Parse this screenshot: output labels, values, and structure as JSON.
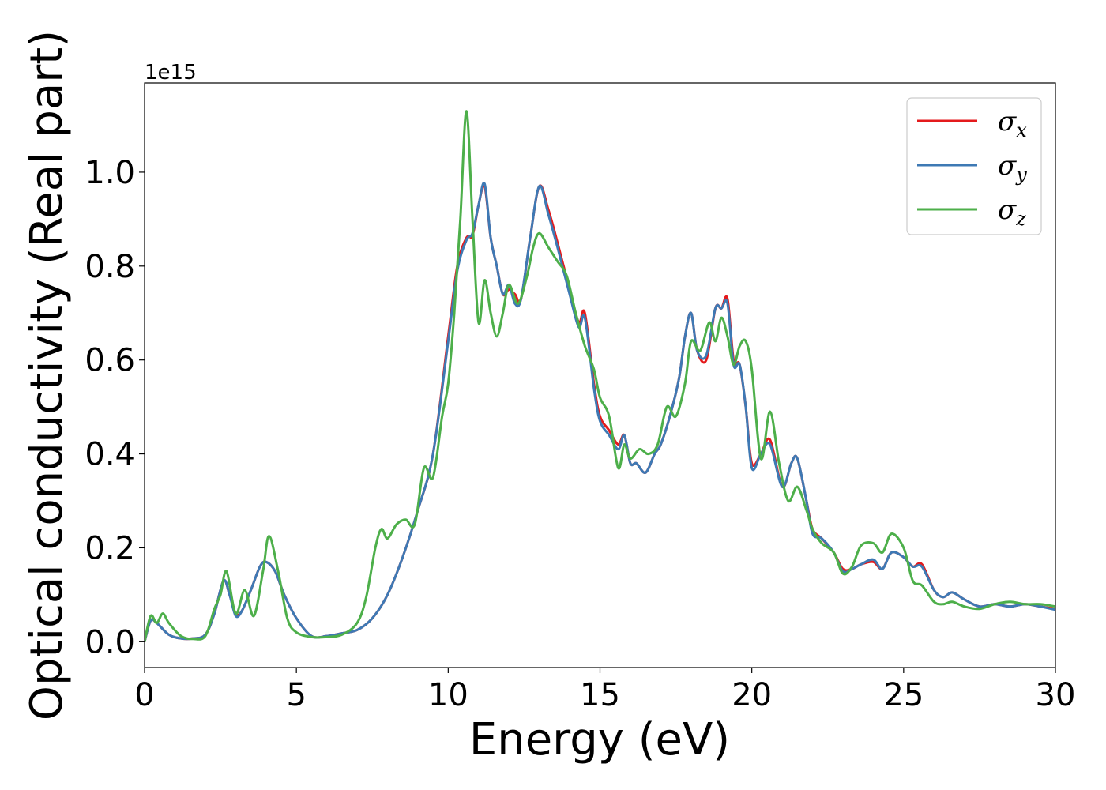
{
  "chart_data": {
    "type": "line",
    "xlabel": "Energy (eV)",
    "ylabel": "Optical conductivity (Real part)",
    "y_offset_label": "1e15",
    "xlim": [
      0,
      30
    ],
    "ylim": [
      -0.055,
      1.19
    ],
    "x_ticks": [
      0,
      5,
      10,
      15,
      20,
      25,
      30
    ],
    "x_tick_labels": [
      "0",
      "5",
      "10",
      "15",
      "20",
      "25",
      "30"
    ],
    "y_ticks": [
      0.0,
      0.2,
      0.4,
      0.6,
      0.8,
      1.0
    ],
    "y_tick_labels": [
      "0.0",
      "0.2",
      "0.4",
      "0.6",
      "0.8",
      "1.0"
    ],
    "grid": false,
    "legend_position": "top-right",
    "series": [
      {
        "name": "σ",
        "subscript": "x",
        "color": "#e41a1c",
        "x": [
          0,
          0.2,
          0.4,
          0.8,
          1.2,
          1.6,
          2.0,
          2.3,
          2.6,
          2.8,
          3.0,
          3.2,
          3.5,
          3.8,
          4.0,
          4.3,
          4.6,
          5.0,
          5.5,
          6.0,
          6.5,
          7.0,
          7.5,
          8.0,
          8.5,
          9.0,
          9.5,
          10.0,
          10.3,
          10.6,
          10.8,
          11.0,
          11.2,
          11.4,
          11.6,
          11.8,
          12.0,
          12.2,
          12.4,
          12.7,
          13.0,
          13.3,
          13.6,
          14.0,
          14.3,
          14.5,
          14.8,
          15.0,
          15.3,
          15.6,
          15.8,
          16.0,
          16.2,
          16.5,
          16.8,
          17.0,
          17.3,
          17.6,
          17.8,
          18.0,
          18.2,
          18.5,
          18.8,
          19.0,
          19.2,
          19.4,
          19.6,
          19.8,
          20.0,
          20.3,
          20.6,
          21.0,
          21.3,
          21.5,
          21.8,
          22.0,
          22.3,
          22.7,
          23.0,
          23.3,
          23.6,
          24.0,
          24.3,
          24.6,
          25.0,
          25.3,
          25.6,
          26.0,
          26.3,
          26.6,
          27.0,
          27.5,
          28.0,
          28.5,
          29.0,
          29.5,
          30.0
        ],
        "values": [
          0.0,
          0.045,
          0.04,
          0.015,
          0.007,
          0.007,
          0.015,
          0.06,
          0.13,
          0.1,
          0.06,
          0.065,
          0.11,
          0.16,
          0.17,
          0.15,
          0.1,
          0.05,
          0.012,
          0.012,
          0.018,
          0.025,
          0.05,
          0.1,
          0.18,
          0.28,
          0.4,
          0.65,
          0.8,
          0.86,
          0.865,
          0.93,
          0.97,
          0.86,
          0.8,
          0.74,
          0.75,
          0.74,
          0.73,
          0.86,
          0.97,
          0.92,
          0.85,
          0.75,
          0.68,
          0.7,
          0.55,
          0.48,
          0.45,
          0.42,
          0.44,
          0.38,
          0.38,
          0.36,
          0.4,
          0.42,
          0.48,
          0.56,
          0.65,
          0.7,
          0.62,
          0.6,
          0.71,
          0.71,
          0.73,
          0.6,
          0.59,
          0.5,
          0.38,
          0.4,
          0.43,
          0.33,
          0.38,
          0.39,
          0.3,
          0.24,
          0.22,
          0.19,
          0.155,
          0.155,
          0.165,
          0.17,
          0.155,
          0.19,
          0.18,
          0.16,
          0.165,
          0.11,
          0.095,
          0.105,
          0.09,
          0.075,
          0.08,
          0.075,
          0.08,
          0.075,
          0.07
        ]
      },
      {
        "name": "σ",
        "subscript": "y",
        "color": "#3e79b4",
        "x": [
          0,
          0.2,
          0.4,
          0.8,
          1.2,
          1.6,
          2.0,
          2.3,
          2.6,
          2.8,
          3.0,
          3.2,
          3.5,
          3.8,
          4.0,
          4.3,
          4.6,
          5.0,
          5.5,
          6.0,
          6.5,
          7.0,
          7.5,
          8.0,
          8.5,
          9.0,
          9.5,
          10.0,
          10.3,
          10.6,
          10.8,
          11.0,
          11.2,
          11.4,
          11.6,
          11.8,
          12.0,
          12.2,
          12.4,
          12.7,
          13.0,
          13.3,
          13.6,
          14.0,
          14.3,
          14.5,
          14.8,
          15.0,
          15.3,
          15.6,
          15.8,
          16.0,
          16.2,
          16.5,
          16.8,
          17.0,
          17.3,
          17.6,
          17.8,
          18.0,
          18.2,
          18.5,
          18.8,
          19.0,
          19.2,
          19.4,
          19.6,
          19.8,
          20.0,
          20.3,
          20.6,
          21.0,
          21.3,
          21.5,
          21.8,
          22.0,
          22.3,
          22.7,
          23.0,
          23.3,
          23.6,
          24.0,
          24.3,
          24.6,
          25.0,
          25.3,
          25.6,
          26.0,
          26.3,
          26.6,
          27.0,
          27.5,
          28.0,
          28.5,
          29.0,
          29.5,
          30.0
        ],
        "values": [
          0.0,
          0.045,
          0.04,
          0.015,
          0.007,
          0.007,
          0.015,
          0.06,
          0.13,
          0.1,
          0.055,
          0.065,
          0.11,
          0.16,
          0.17,
          0.15,
          0.1,
          0.05,
          0.012,
          0.012,
          0.018,
          0.025,
          0.05,
          0.1,
          0.18,
          0.28,
          0.4,
          0.64,
          0.79,
          0.855,
          0.87,
          0.93,
          0.975,
          0.86,
          0.8,
          0.74,
          0.76,
          0.72,
          0.73,
          0.86,
          0.97,
          0.91,
          0.84,
          0.74,
          0.67,
          0.69,
          0.54,
          0.47,
          0.44,
          0.41,
          0.44,
          0.38,
          0.38,
          0.36,
          0.4,
          0.42,
          0.48,
          0.56,
          0.65,
          0.7,
          0.62,
          0.61,
          0.71,
          0.71,
          0.72,
          0.59,
          0.59,
          0.5,
          0.37,
          0.4,
          0.42,
          0.33,
          0.38,
          0.39,
          0.3,
          0.23,
          0.22,
          0.19,
          0.15,
          0.155,
          0.165,
          0.175,
          0.155,
          0.19,
          0.18,
          0.16,
          0.16,
          0.11,
          0.095,
          0.105,
          0.09,
          0.075,
          0.08,
          0.075,
          0.08,
          0.075,
          0.068
        ]
      },
      {
        "name": "σ",
        "subscript": "z",
        "color": "#4daf4a",
        "x": [
          0,
          0.2,
          0.4,
          0.6,
          0.8,
          1.2,
          1.6,
          2.0,
          2.3,
          2.5,
          2.7,
          3.0,
          3.3,
          3.6,
          3.9,
          4.1,
          4.4,
          4.7,
          5.0,
          5.5,
          6.0,
          6.5,
          7.0,
          7.3,
          7.6,
          7.8,
          8.0,
          8.3,
          8.6,
          8.9,
          9.2,
          9.5,
          9.8,
          10.0,
          10.2,
          10.4,
          10.6,
          10.8,
          11.0,
          11.2,
          11.4,
          11.6,
          11.8,
          12.0,
          12.3,
          12.6,
          12.8,
          13.0,
          13.3,
          13.6,
          13.9,
          14.2,
          14.5,
          14.8,
          15.0,
          15.3,
          15.6,
          15.8,
          16.0,
          16.3,
          16.6,
          16.9,
          17.2,
          17.5,
          17.8,
          18.0,
          18.3,
          18.6,
          18.8,
          19.0,
          19.2,
          19.4,
          19.6,
          19.8,
          20.0,
          20.3,
          20.6,
          20.9,
          21.2,
          21.5,
          21.8,
          22.0,
          22.3,
          22.7,
          23.0,
          23.3,
          23.6,
          24.0,
          24.3,
          24.6,
          25.0,
          25.3,
          25.6,
          26.0,
          26.3,
          26.6,
          27.0,
          27.5,
          28.0,
          28.5,
          29.0,
          29.5,
          30.0
        ],
        "values": [
          0.0,
          0.055,
          0.04,
          0.06,
          0.04,
          0.012,
          0.006,
          0.012,
          0.07,
          0.1,
          0.15,
          0.06,
          0.11,
          0.055,
          0.15,
          0.225,
          0.15,
          0.05,
          0.02,
          0.01,
          0.01,
          0.015,
          0.04,
          0.095,
          0.2,
          0.24,
          0.22,
          0.25,
          0.26,
          0.25,
          0.37,
          0.35,
          0.48,
          0.55,
          0.7,
          0.9,
          1.13,
          0.9,
          0.68,
          0.77,
          0.7,
          0.65,
          0.7,
          0.76,
          0.72,
          0.78,
          0.84,
          0.87,
          0.84,
          0.81,
          0.78,
          0.7,
          0.63,
          0.58,
          0.52,
          0.48,
          0.37,
          0.42,
          0.39,
          0.41,
          0.4,
          0.42,
          0.5,
          0.48,
          0.55,
          0.64,
          0.62,
          0.68,
          0.64,
          0.69,
          0.65,
          0.59,
          0.63,
          0.64,
          0.58,
          0.39,
          0.49,
          0.38,
          0.3,
          0.33,
          0.28,
          0.24,
          0.21,
          0.19,
          0.145,
          0.16,
          0.205,
          0.21,
          0.19,
          0.23,
          0.2,
          0.13,
          0.12,
          0.085,
          0.08,
          0.085,
          0.075,
          0.07,
          0.08,
          0.085,
          0.08,
          0.08,
          0.075
        ]
      }
    ]
  }
}
